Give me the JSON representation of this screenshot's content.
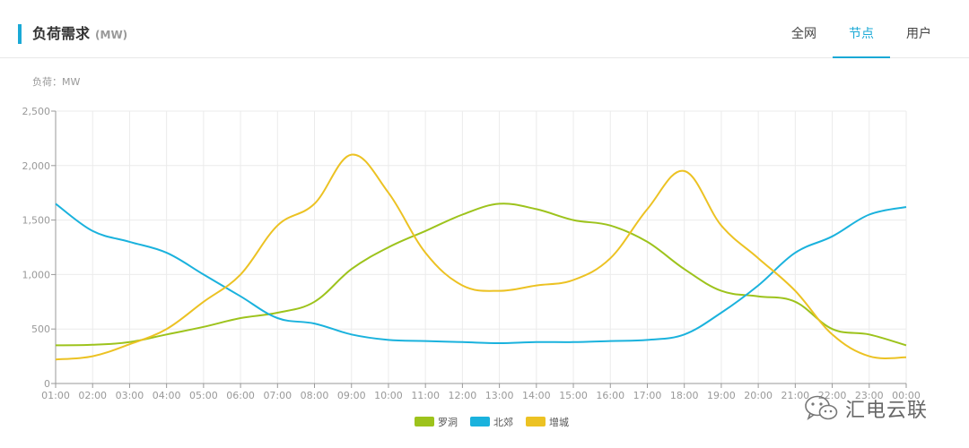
{
  "header": {
    "title": "负荷需求",
    "unit": "(MW)",
    "tabs": [
      {
        "label": "全网",
        "active": false
      },
      {
        "label": "节点",
        "active": true
      },
      {
        "label": "用户",
        "active": false
      }
    ]
  },
  "watermark": {
    "text": "汇电云联"
  },
  "chart_data": {
    "type": "line",
    "unit_label": "负荷：MW",
    "ylim": [
      0,
      2500
    ],
    "yticks": [
      0,
      500,
      1000,
      1500,
      2000,
      2500
    ],
    "ytick_labels": [
      "0",
      "500",
      "1,000",
      "1,500",
      "2,000",
      "2,500"
    ],
    "x": [
      "01:00",
      "02:00",
      "03:00",
      "04:00",
      "05:00",
      "06:00",
      "07:00",
      "08:00",
      "09:00",
      "10:00",
      "11:00",
      "12:00",
      "13:00",
      "14:00",
      "15:00",
      "16:00",
      "17:00",
      "18:00",
      "19:00",
      "20:00",
      "21:00",
      "22:00",
      "23:00",
      "00:00"
    ],
    "grid": true,
    "legend_position": "bottom",
    "series": [
      {
        "name": "罗洞",
        "color": "#9dc31c",
        "values": [
          350,
          355,
          380,
          450,
          520,
          600,
          650,
          750,
          1050,
          1250,
          1400,
          1550,
          1650,
          1600,
          1500,
          1450,
          1300,
          1050,
          850,
          800,
          750,
          500,
          450,
          350
        ]
      },
      {
        "name": "北郊",
        "color": "#1ab2dd",
        "values": [
          1650,
          1400,
          1300,
          1200,
          1000,
          800,
          600,
          550,
          450,
          400,
          390,
          380,
          370,
          380,
          380,
          390,
          400,
          450,
          650,
          900,
          1200,
          1350,
          1550,
          1620
        ]
      },
      {
        "name": "增城",
        "color": "#ecc223",
        "values": [
          220,
          250,
          360,
          500,
          750,
          1000,
          1450,
          1650,
          2100,
          1750,
          1200,
          900,
          850,
          900,
          950,
          1150,
          1600,
          1950,
          1450,
          1150,
          850,
          450,
          250,
          240
        ]
      }
    ]
  }
}
